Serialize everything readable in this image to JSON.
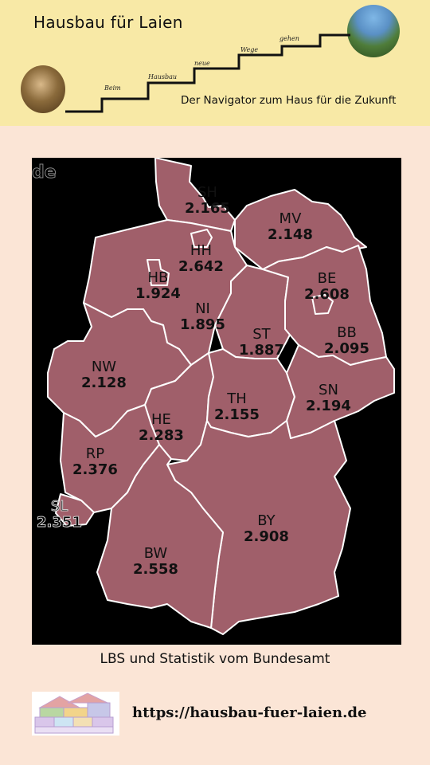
{
  "header": {
    "title": "Hausbau für Laien",
    "tagline": "Der Navigator zum Haus für die Zukunft",
    "steps": [
      "Beim",
      "Hausbau",
      "neue",
      "Wege",
      "gehen"
    ]
  },
  "map": {
    "country_code": "de",
    "fill_color": "#a05f6a",
    "border_color": "#ffffff",
    "states": [
      {
        "abbr": "SH",
        "value": "2.165"
      },
      {
        "abbr": "MV",
        "value": "2.148"
      },
      {
        "abbr": "HH",
        "value": "2.642"
      },
      {
        "abbr": "HB",
        "value": "1.924"
      },
      {
        "abbr": "BE",
        "value": "2.608"
      },
      {
        "abbr": "NI",
        "value": "1.895"
      },
      {
        "abbr": "ST",
        "value": "1.887"
      },
      {
        "abbr": "BB",
        "value": "2.095"
      },
      {
        "abbr": "NW",
        "value": "2.128"
      },
      {
        "abbr": "TH",
        "value": "2.155"
      },
      {
        "abbr": "SN",
        "value": "2.194"
      },
      {
        "abbr": "HE",
        "value": "2.283"
      },
      {
        "abbr": "RP",
        "value": "2.376"
      },
      {
        "abbr": "SL",
        "value": "2.351"
      },
      {
        "abbr": "BY",
        "value": "2.908"
      },
      {
        "abbr": "BW",
        "value": "2.558"
      }
    ]
  },
  "source": "LBS und Statistik vom Bundesamt",
  "footer": {
    "url": "https://hausbau-fuer-laien.de"
  }
}
